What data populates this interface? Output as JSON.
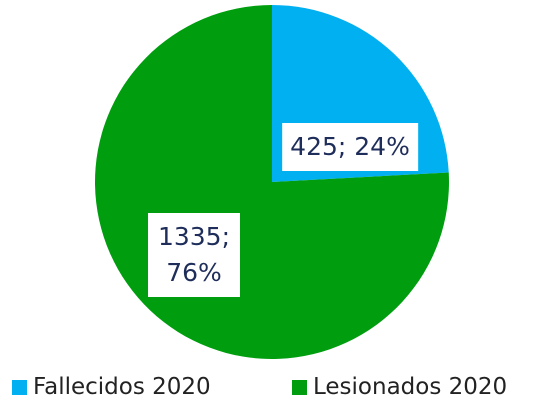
{
  "chart_data": {
    "type": "pie",
    "categories": [
      "Fallecidos 2020",
      "Lesionados 2020"
    ],
    "values": [
      425,
      1335
    ],
    "value_labels": [
      "425; 24%",
      "1335; 76%"
    ],
    "colors": [
      "#00b0f0",
      "#009e0f"
    ]
  }
}
